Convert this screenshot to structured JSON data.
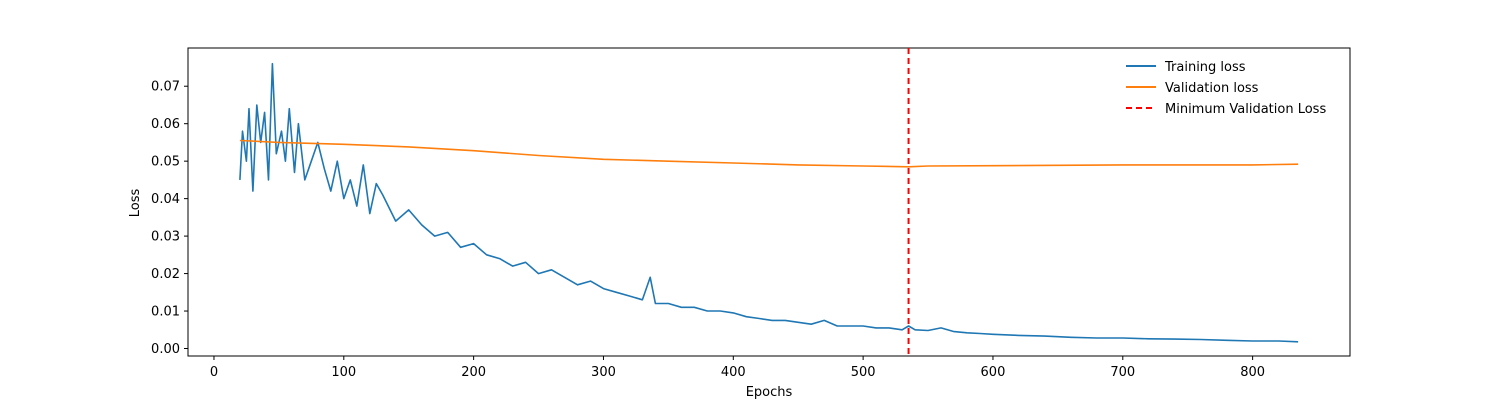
{
  "chart_data": {
    "type": "line",
    "title": "",
    "xlabel": "Epochs",
    "ylabel": "Loss",
    "xlim": [
      -20,
      875
    ],
    "ylim": [
      -0.002,
      0.0802
    ],
    "xticks": [
      0,
      100,
      200,
      300,
      400,
      500,
      600,
      700,
      800
    ],
    "yticks": [
      0.0,
      0.01,
      0.02,
      0.03,
      0.04,
      0.05,
      0.06,
      0.07
    ],
    "ytick_labels": [
      "0.00",
      "0.01",
      "0.02",
      "0.03",
      "0.04",
      "0.05",
      "0.06",
      "0.07"
    ],
    "grid": false,
    "legend_position": "top-right",
    "series": [
      {
        "name": "Training loss",
        "color": "#1f77b4",
        "x": [
          20,
          22,
          25,
          27,
          30,
          33,
          36,
          39,
          42,
          45,
          48,
          52,
          55,
          58,
          62,
          65,
          70,
          75,
          80,
          85,
          90,
          95,
          100,
          105,
          110,
          115,
          120,
          125,
          130,
          140,
          150,
          160,
          170,
          180,
          190,
          200,
          210,
          220,
          230,
          240,
          250,
          260,
          270,
          280,
          290,
          300,
          310,
          320,
          330,
          336,
          340,
          350,
          360,
          370,
          380,
          390,
          400,
          410,
          420,
          430,
          440,
          450,
          460,
          470,
          480,
          490,
          500,
          510,
          520,
          530,
          535,
          540,
          550,
          560,
          570,
          580,
          590,
          600,
          620,
          640,
          660,
          680,
          700,
          720,
          740,
          760,
          780,
          800,
          820,
          835
        ],
        "values": [
          0.045,
          0.058,
          0.05,
          0.064,
          0.042,
          0.065,
          0.055,
          0.063,
          0.045,
          0.076,
          0.052,
          0.058,
          0.05,
          0.064,
          0.047,
          0.06,
          0.045,
          0.05,
          0.055,
          0.048,
          0.042,
          0.05,
          0.04,
          0.045,
          0.038,
          0.049,
          0.036,
          0.044,
          0.041,
          0.034,
          0.037,
          0.033,
          0.03,
          0.031,
          0.027,
          0.028,
          0.025,
          0.024,
          0.022,
          0.023,
          0.02,
          0.021,
          0.019,
          0.017,
          0.018,
          0.016,
          0.015,
          0.014,
          0.013,
          0.019,
          0.012,
          0.012,
          0.011,
          0.011,
          0.01,
          0.01,
          0.0095,
          0.0085,
          0.008,
          0.0075,
          0.0075,
          0.007,
          0.0065,
          0.0075,
          0.006,
          0.006,
          0.006,
          0.0055,
          0.0055,
          0.005,
          0.006,
          0.005,
          0.0048,
          0.0055,
          0.0045,
          0.0042,
          0.004,
          0.0038,
          0.0035,
          0.0033,
          0.003,
          0.0028,
          0.0028,
          0.0026,
          0.0025,
          0.0024,
          0.0022,
          0.002,
          0.002,
          0.0018
        ]
      },
      {
        "name": "Validation loss",
        "color": "#ff7f0e",
        "x": [
          20,
          50,
          100,
          150,
          200,
          250,
          300,
          350,
          400,
          450,
          500,
          535,
          550,
          600,
          650,
          700,
          750,
          800,
          835
        ],
        "values": [
          0.0555,
          0.055,
          0.0545,
          0.0538,
          0.0528,
          0.0515,
          0.0505,
          0.05,
          0.0495,
          0.049,
          0.0487,
          0.0485,
          0.0487,
          0.0488,
          0.0489,
          0.049,
          0.049,
          0.049,
          0.0492
        ]
      }
    ],
    "vlines": [
      {
        "name": "Minimum Validation Loss",
        "x": 535,
        "color": "#ff0000",
        "style": "dashed"
      }
    ]
  }
}
